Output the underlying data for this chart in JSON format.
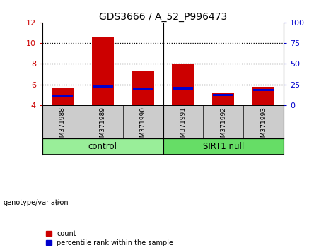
{
  "title": "GDS3666 / A_52_P996473",
  "samples": [
    "GSM371988",
    "GSM371989",
    "GSM371990",
    "GSM371991",
    "GSM371992",
    "GSM371993"
  ],
  "count_values": [
    5.7,
    10.65,
    7.35,
    8.05,
    5.2,
    5.75
  ],
  "percentile_values": [
    4.85,
    5.85,
    5.55,
    5.65,
    5.0,
    5.45
  ],
  "bar_bottom": 4.0,
  "ylim_left": [
    4,
    12
  ],
  "ylim_right": [
    0,
    100
  ],
  "yticks_left": [
    4,
    6,
    8,
    10,
    12
  ],
  "yticks_right": [
    0,
    25,
    50,
    75,
    100
  ],
  "bar_color_red": "#cc0000",
  "bar_color_blue": "#0000cc",
  "bar_width": 0.55,
  "groups": [
    {
      "label": "control",
      "indices": [
        0,
        1,
        2
      ],
      "color": "#99ee99"
    },
    {
      "label": "SIRT1 null",
      "indices": [
        3,
        4,
        5
      ],
      "color": "#66dd66"
    }
  ],
  "genotype_label": "genotype/variation",
  "legend_count": "count",
  "legend_percentile": "percentile rank within the sample",
  "tick_color_left": "#cc0000",
  "tick_color_right": "#0000cc",
  "sample_label_bg": "#cccccc",
  "fig_width": 4.61,
  "fig_height": 3.54,
  "dpi": 100
}
